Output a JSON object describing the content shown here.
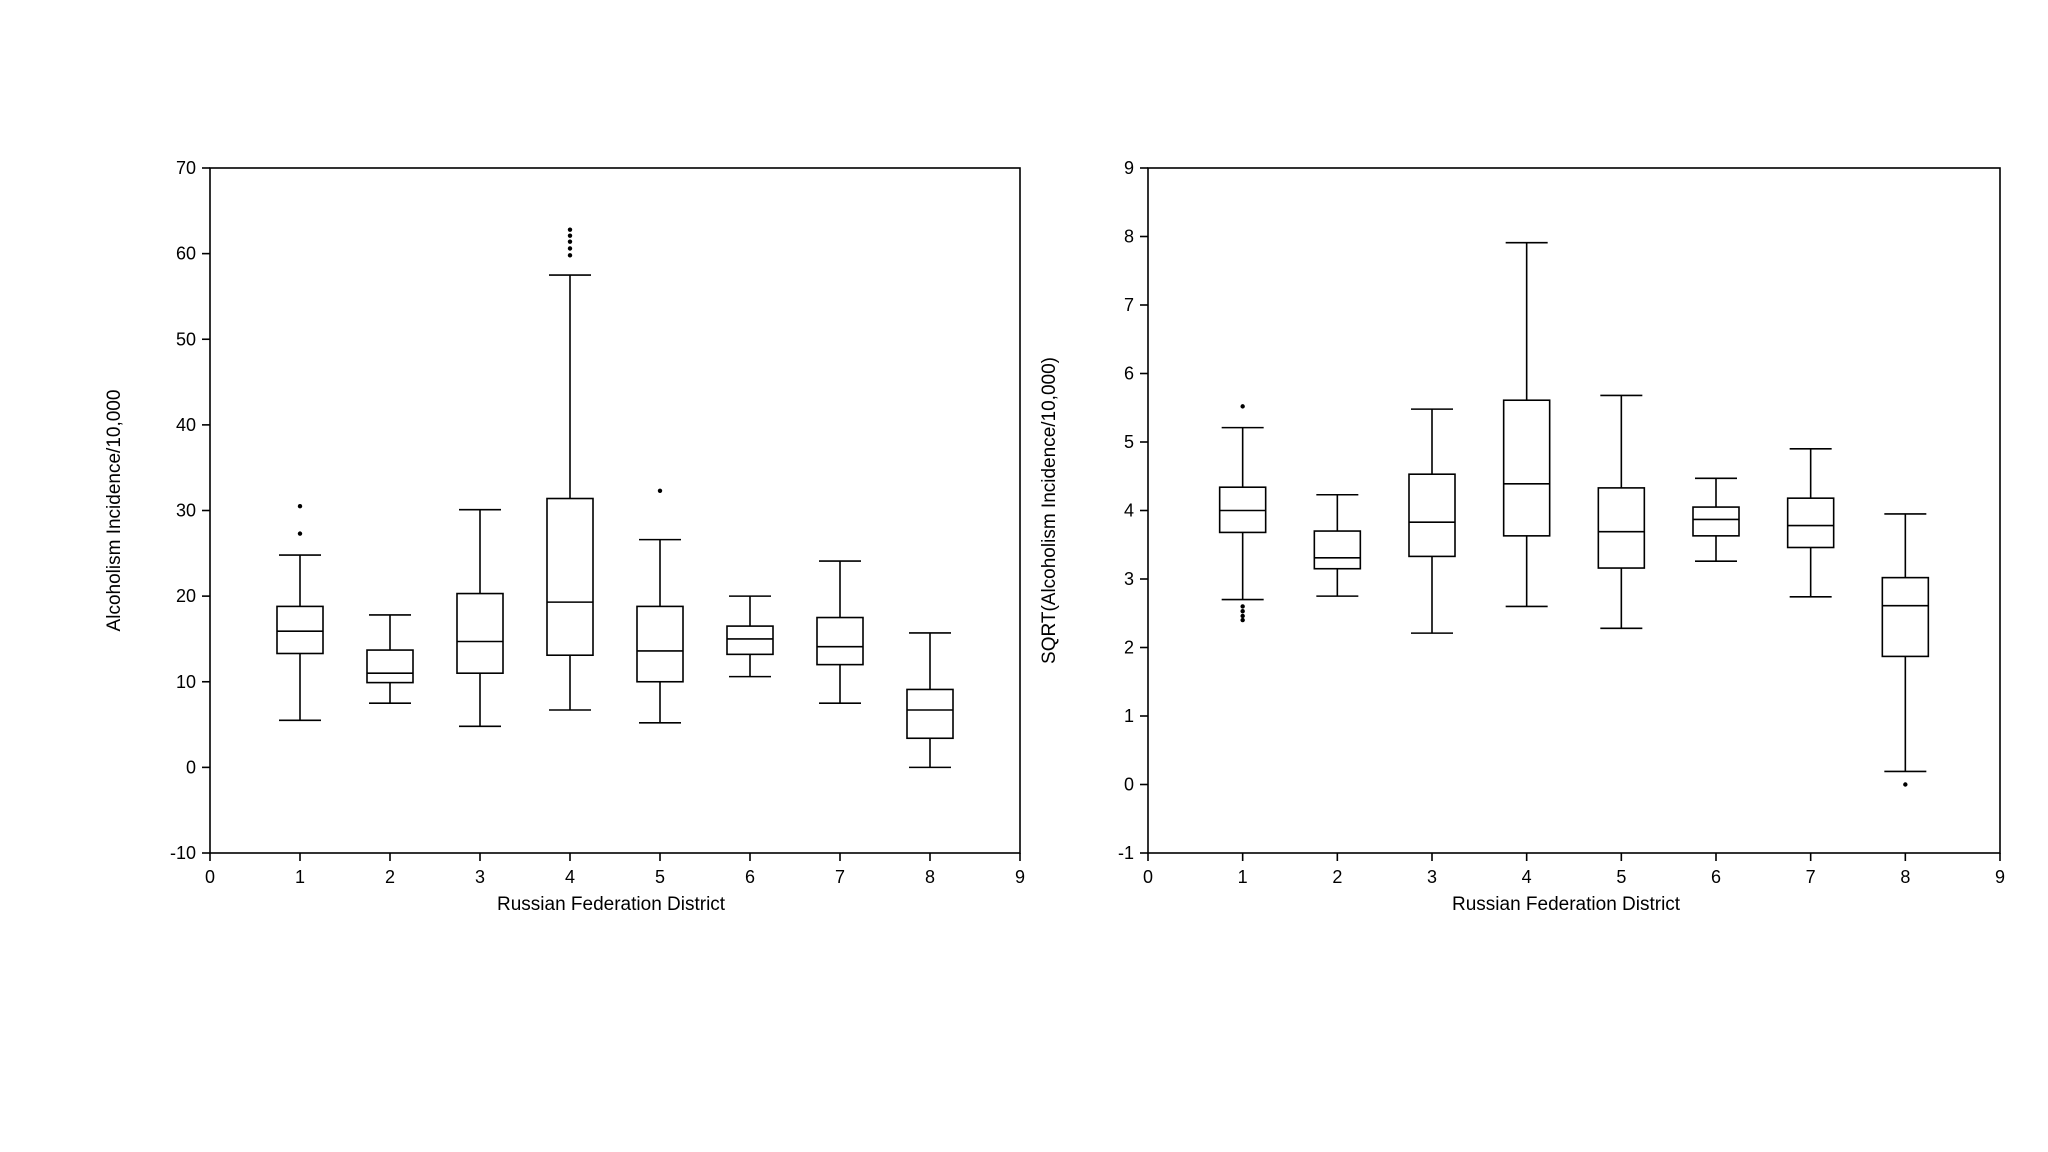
{
  "chart_data": [
    {
      "type": "boxplot",
      "title": "",
      "xlabel": "Russian Federation District",
      "ylabel": "Alcoholism Incidence/10,000",
      "xlim": [
        0,
        9
      ],
      "ylim": [
        -10,
        70
      ],
      "xticks": [
        "0",
        "1",
        "2",
        "3",
        "4",
        "5",
        "6",
        "7",
        "8",
        "9"
      ],
      "yticks": [
        "-10",
        "0",
        "10",
        "20",
        "30",
        "40",
        "50",
        "60",
        "70"
      ],
      "grid": false,
      "boxes": [
        {
          "x": 1,
          "whisker_low": 5.5,
          "q1": 13.3,
          "median": 15.9,
          "q3": 18.8,
          "whisker_high": 24.8,
          "outliers": [
            27.3,
            30.5
          ]
        },
        {
          "x": 2,
          "whisker_low": 7.5,
          "q1": 9.9,
          "median": 11.0,
          "q3": 13.7,
          "whisker_high": 17.8,
          "outliers": []
        },
        {
          "x": 3,
          "whisker_low": 4.8,
          "q1": 11.0,
          "median": 14.7,
          "q3": 20.3,
          "whisker_high": 30.1,
          "outliers": []
        },
        {
          "x": 4,
          "whisker_low": 6.7,
          "q1": 13.1,
          "median": 19.3,
          "q3": 31.4,
          "whisker_high": 57.5,
          "outliers": [
            59.8,
            60.6,
            61.4,
            62.1,
            62.8
          ]
        },
        {
          "x": 5,
          "whisker_low": 5.2,
          "q1": 10.0,
          "median": 13.6,
          "q3": 18.8,
          "whisker_high": 26.6,
          "outliers": [
            32.3
          ]
        },
        {
          "x": 6,
          "whisker_low": 10.6,
          "q1": 13.2,
          "median": 15.0,
          "q3": 16.5,
          "whisker_high": 20.0,
          "outliers": []
        },
        {
          "x": 7,
          "whisker_low": 7.5,
          "q1": 12.0,
          "median": 14.1,
          "q3": 17.5,
          "whisker_high": 24.1,
          "outliers": []
        },
        {
          "x": 8,
          "whisker_low": 0.0,
          "q1": 3.4,
          "median": 6.7,
          "q3": 9.1,
          "whisker_high": 15.7,
          "outliers": []
        }
      ]
    },
    {
      "type": "boxplot",
      "title": "",
      "xlabel": "Russian Federation District",
      "ylabel": "SQRT(Alcoholism Incidence/10,000)",
      "xlim": [
        0,
        9
      ],
      "ylim": [
        -1,
        9
      ],
      "xticks": [
        "0",
        "1",
        "2",
        "3",
        "4",
        "5",
        "6",
        "7",
        "8",
        "9"
      ],
      "yticks": [
        "-1",
        "0",
        "1",
        "2",
        "3",
        "4",
        "5",
        "6",
        "7",
        "8",
        "9"
      ],
      "grid": false,
      "boxes": [
        {
          "x": 1,
          "whisker_low": 2.7,
          "q1": 3.68,
          "median": 4.0,
          "q3": 4.34,
          "whisker_high": 5.21,
          "outliers": [
            2.4,
            2.46,
            2.53,
            2.6,
            5.52
          ]
        },
        {
          "x": 2,
          "whisker_low": 2.75,
          "q1": 3.15,
          "median": 3.31,
          "q3": 3.7,
          "whisker_high": 4.23,
          "outliers": []
        },
        {
          "x": 3,
          "whisker_low": 2.21,
          "q1": 3.33,
          "median": 3.83,
          "q3": 4.53,
          "whisker_high": 5.48,
          "outliers": []
        },
        {
          "x": 4,
          "whisker_low": 2.6,
          "q1": 3.63,
          "median": 4.39,
          "q3": 5.61,
          "whisker_high": 7.91,
          "outliers": []
        },
        {
          "x": 5,
          "whisker_low": 2.28,
          "q1": 3.16,
          "median": 3.69,
          "q3": 4.33,
          "whisker_high": 5.68,
          "outliers": []
        },
        {
          "x": 6,
          "whisker_low": 3.26,
          "q1": 3.63,
          "median": 3.87,
          "q3": 4.05,
          "whisker_high": 4.47,
          "outliers": []
        },
        {
          "x": 7,
          "whisker_low": 2.74,
          "q1": 3.46,
          "median": 3.78,
          "q3": 4.18,
          "whisker_high": 4.9,
          "outliers": []
        },
        {
          "x": 8,
          "whisker_low": 0.19,
          "q1": 1.87,
          "median": 2.61,
          "q3": 3.02,
          "whisker_high": 3.95,
          "outliers": [
            0.0
          ]
        }
      ]
    }
  ]
}
